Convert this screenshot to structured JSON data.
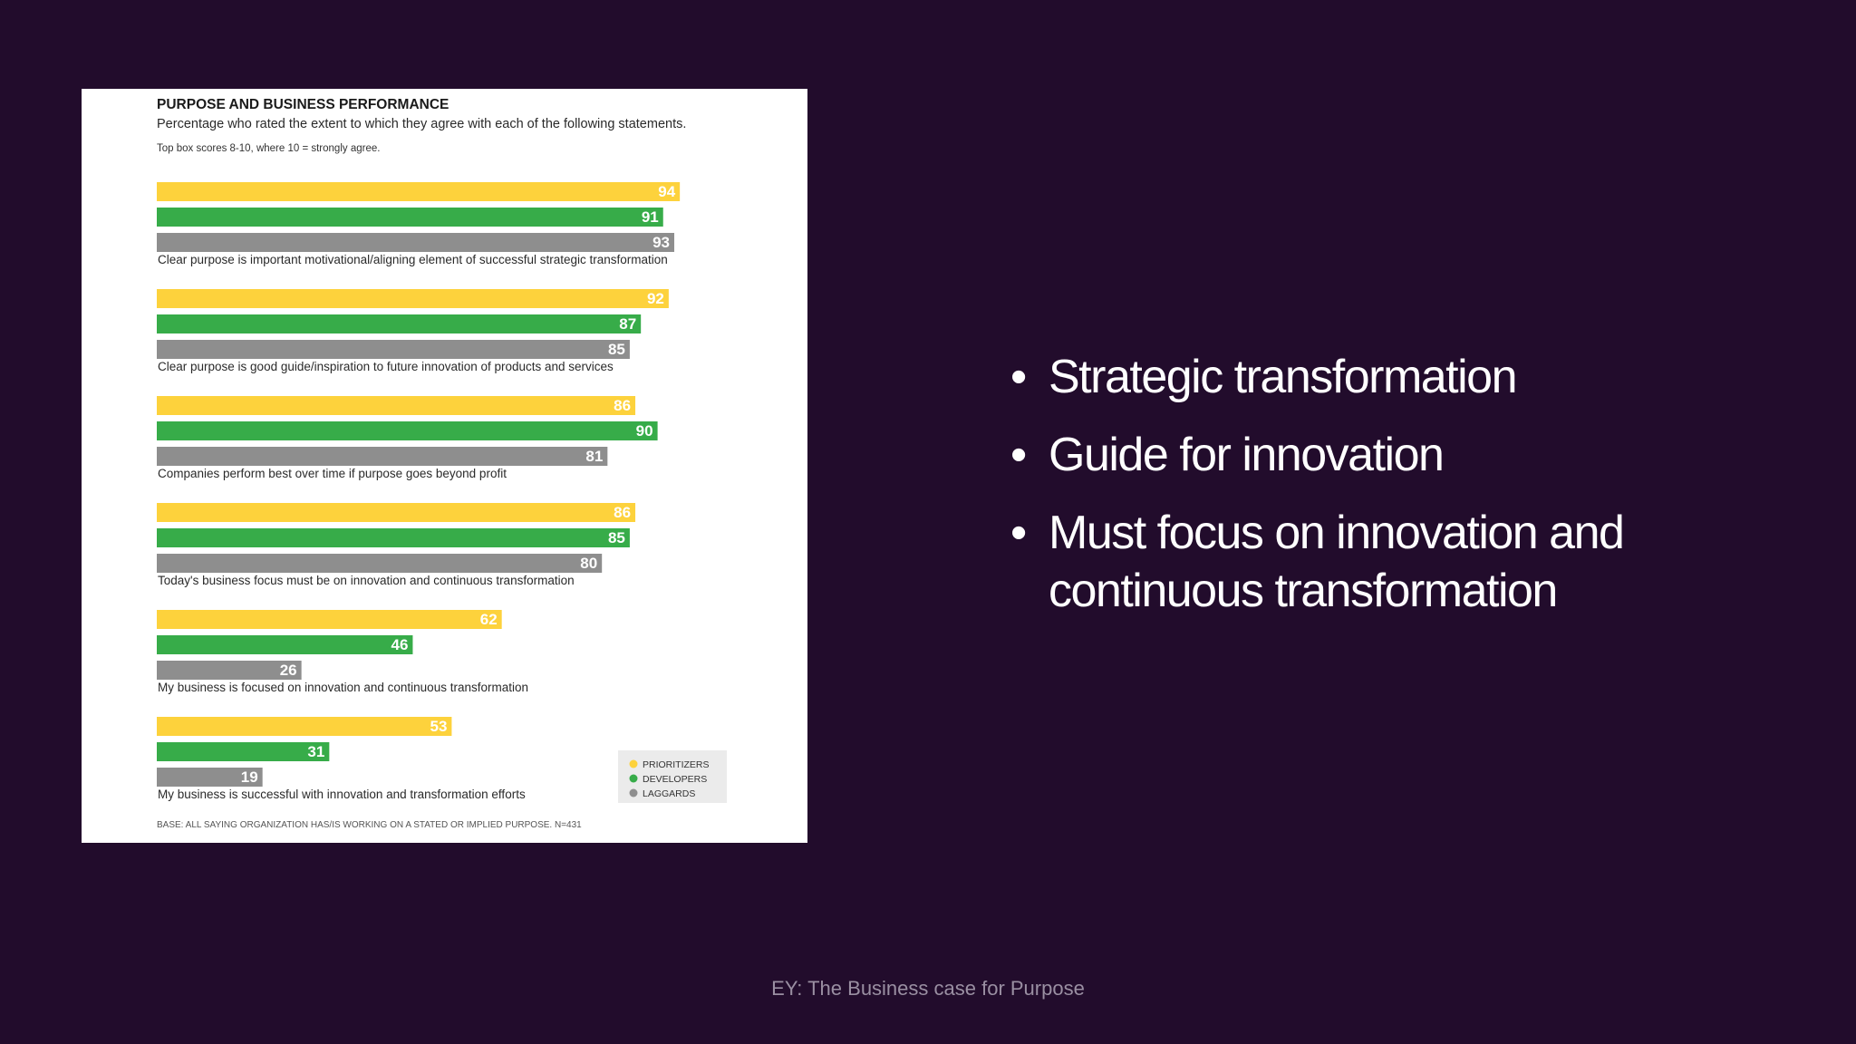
{
  "bullets": [
    "Strategic transformation",
    "Guide for innovation",
    "Must focus on innovation and continuous transformation"
  ],
  "source": "EY: The Business case for Purpose",
  "chart_data": {
    "type": "bar",
    "orientation": "horizontal",
    "title": "PURPOSE AND BUSINESS PERFORMANCE",
    "subtitle": "Percentage who rated the extent to which they agree with each of the following statements.",
    "note": "Top box scores 8-10, where 10 = strongly agree.",
    "categories": [
      "Clear purpose is important motivational/aligning element of successful strategic transformation",
      "Clear purpose is good guide/inspiration to future innovation of products and services",
      "Companies perform best over time if purpose goes beyond profit",
      "Today's business focus must be on innovation and continuous transformation",
      "My business is focused on innovation and continuous transformation",
      "My business is successful with innovation and transformation efforts"
    ],
    "series": [
      {
        "name": "PRIORITIZERS",
        "color": "#fdd23c",
        "values": [
          94,
          92,
          86,
          86,
          62,
          53
        ]
      },
      {
        "name": "DEVELOPERS",
        "color": "#37ac49",
        "values": [
          91,
          87,
          90,
          85,
          46,
          31
        ]
      },
      {
        "name": "LAGGARDS",
        "color": "#8e8e8e",
        "values": [
          93,
          85,
          81,
          80,
          26,
          19
        ]
      }
    ],
    "xlim": [
      0,
      100
    ],
    "legend_position": "bottom-right",
    "grid": false,
    "base_note": "BASE: ALL SAYING ORGANIZATION HAS/IS WORKING ON A STATED OR IMPLIED PURPOSE. N=431"
  }
}
